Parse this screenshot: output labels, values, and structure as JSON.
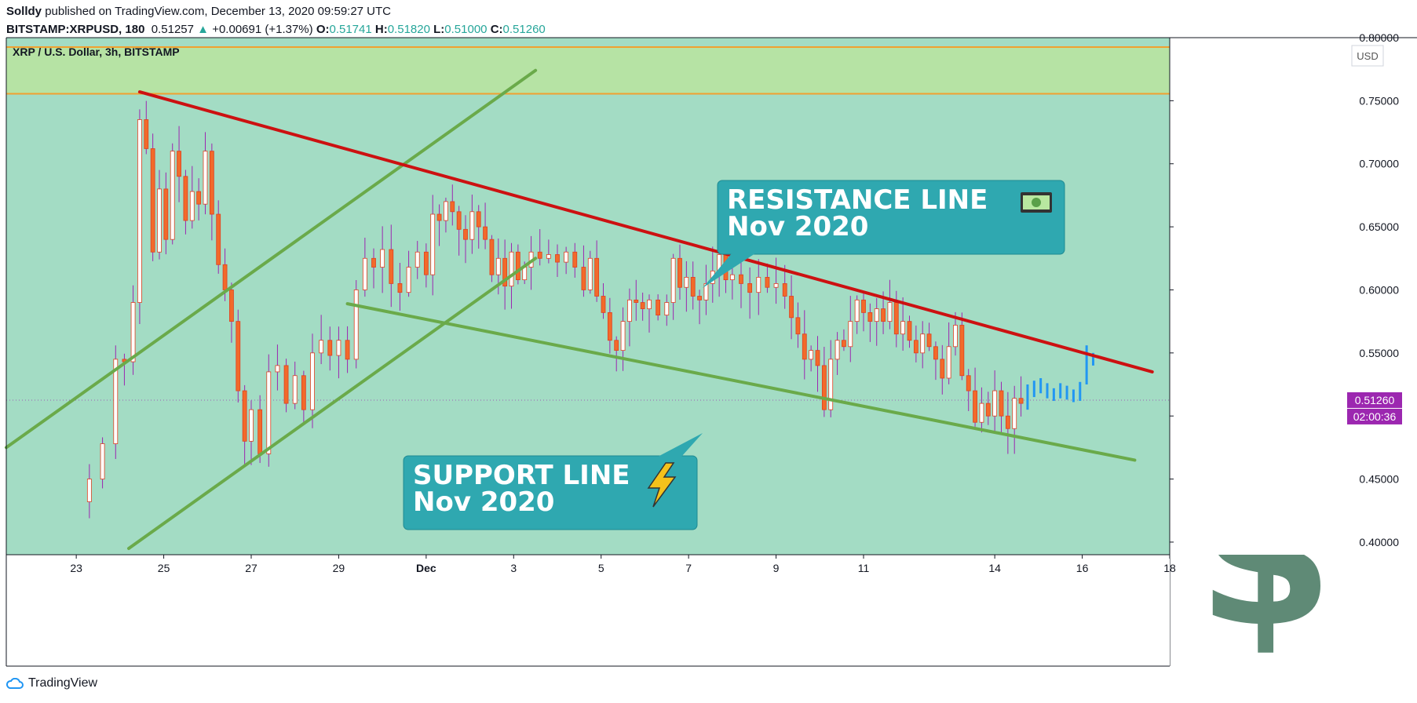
{
  "header": {
    "author": "Solldy",
    "published_text": "published on TradingView.com, December 13, 2020 09:59:27 UTC",
    "symbol": "BITSTAMP:XRPUSD, 180",
    "last": "0.51257",
    "change": "+0.00691 (+1.37%)",
    "o_label": "O:",
    "o_value": "0.51741",
    "h_label": "H:",
    "h_value": "0.51820",
    "l_label": "L:",
    "l_value": "0.51000",
    "c_label": "C:",
    "c_value": "0.51260"
  },
  "footer": {
    "brand": "TradingView"
  },
  "colors": {
    "pane_bg": "#a3dcc4",
    "zone_bg": "#b6e3a4",
    "zone_line": "#f0a030",
    "resistance": "#cc1111",
    "support": "#6aaa4a",
    "candle_up_body": "#ffffff",
    "candle_down_body": "#f26a2a",
    "wick": "#9c27b0",
    "forecast": "#2196f3",
    "callout_bg": "#2fa8b0",
    "price_tag": "#9c27b0",
    "dollar": "#5f8a76"
  },
  "chart_data": {
    "type": "candlestick",
    "title": "XRP / U.S. Dollar, 3h, BITSTAMP",
    "currency": "USD",
    "ylim": [
      0.39,
      0.8
    ],
    "y_ticks": [
      "0.80000",
      "0.75000",
      "0.70000",
      "0.65000",
      "0.60000",
      "0.55000",
      "0.50000",
      "0.45000",
      "0.40000"
    ],
    "y_tick_values": [
      0.8,
      0.75,
      0.7,
      0.65,
      0.6,
      0.55,
      0.5,
      0.45,
      0.4
    ],
    "x_ticks": [
      "23",
      "25",
      "27",
      "29",
      "Dec",
      "3",
      "5",
      "7",
      "9",
      "11",
      "14",
      "16",
      "18"
    ],
    "x_tick_days": [
      0,
      2,
      4,
      6,
      8,
      10,
      12,
      14,
      16,
      18,
      21,
      23,
      25
    ],
    "x_range_days": [
      -1.6,
      25.0
    ],
    "last_price": "0.51260",
    "countdown": "02:00:36",
    "last_price_value": 0.5126,
    "zone": [
      0.7555,
      0.7925
    ],
    "close_path": [
      [
        0.0,
        0.432
      ],
      [
        0.3,
        0.45
      ],
      [
        0.6,
        0.478
      ],
      [
        0.9,
        0.545
      ],
      [
        1.1,
        0.543
      ],
      [
        1.3,
        0.59
      ],
      [
        1.45,
        0.735
      ],
      [
        1.6,
        0.712
      ],
      [
        1.75,
        0.63
      ],
      [
        1.9,
        0.68
      ],
      [
        2.05,
        0.64
      ],
      [
        2.2,
        0.71
      ],
      [
        2.35,
        0.69
      ],
      [
        2.5,
        0.655
      ],
      [
        2.65,
        0.678
      ],
      [
        2.8,
        0.668
      ],
      [
        2.95,
        0.71
      ],
      [
        3.1,
        0.66
      ],
      [
        3.25,
        0.62
      ],
      [
        3.4,
        0.6
      ],
      [
        3.55,
        0.575
      ],
      [
        3.7,
        0.52
      ],
      [
        3.85,
        0.48
      ],
      [
        4.0,
        0.505
      ],
      [
        4.2,
        0.47
      ],
      [
        4.4,
        0.535
      ],
      [
        4.6,
        0.54
      ],
      [
        4.8,
        0.51
      ],
      [
        5.0,
        0.532
      ],
      [
        5.2,
        0.505
      ],
      [
        5.4,
        0.55
      ],
      [
        5.6,
        0.56
      ],
      [
        5.8,
        0.548
      ],
      [
        6.0,
        0.56
      ],
      [
        6.2,
        0.545
      ],
      [
        6.4,
        0.6
      ],
      [
        6.6,
        0.625
      ],
      [
        6.8,
        0.618
      ],
      [
        7.0,
        0.632
      ],
      [
        7.2,
        0.605
      ],
      [
        7.4,
        0.598
      ],
      [
        7.6,
        0.618
      ],
      [
        7.8,
        0.63
      ],
      [
        8.0,
        0.612
      ],
      [
        8.15,
        0.66
      ],
      [
        8.3,
        0.655
      ],
      [
        8.45,
        0.67
      ],
      [
        8.6,
        0.662
      ],
      [
        8.75,
        0.648
      ],
      [
        8.9,
        0.64
      ],
      [
        9.05,
        0.662
      ],
      [
        9.2,
        0.65
      ],
      [
        9.35,
        0.64
      ],
      [
        9.5,
        0.612
      ],
      [
        9.65,
        0.625
      ],
      [
        9.8,
        0.603
      ],
      [
        9.95,
        0.63
      ],
      [
        10.1,
        0.608
      ],
      [
        10.25,
        0.618
      ],
      [
        10.4,
        0.63
      ],
      [
        10.6,
        0.625
      ],
      [
        10.8,
        0.628
      ],
      [
        11.0,
        0.622
      ],
      [
        11.2,
        0.63
      ],
      [
        11.4,
        0.618
      ],
      [
        11.6,
        0.6
      ],
      [
        11.75,
        0.625
      ],
      [
        11.9,
        0.595
      ],
      [
        12.05,
        0.582
      ],
      [
        12.2,
        0.56
      ],
      [
        12.35,
        0.552
      ],
      [
        12.5,
        0.575
      ],
      [
        12.65,
        0.592
      ],
      [
        12.8,
        0.59
      ],
      [
        12.95,
        0.585
      ],
      [
        13.1,
        0.592
      ],
      [
        13.3,
        0.58
      ],
      [
        13.5,
        0.59
      ],
      [
        13.65,
        0.625
      ],
      [
        13.8,
        0.602
      ],
      [
        13.95,
        0.61
      ],
      [
        14.1,
        0.595
      ],
      [
        14.25,
        0.592
      ],
      [
        14.4,
        0.605
      ],
      [
        14.55,
        0.615
      ],
      [
        14.7,
        0.628
      ],
      [
        14.85,
        0.608
      ],
      [
        15.0,
        0.612
      ],
      [
        15.2,
        0.605
      ],
      [
        15.4,
        0.598
      ],
      [
        15.6,
        0.61
      ],
      [
        15.8,
        0.602
      ],
      [
        16.0,
        0.605
      ],
      [
        16.2,
        0.595
      ],
      [
        16.35,
        0.578
      ],
      [
        16.5,
        0.565
      ],
      [
        16.65,
        0.545
      ],
      [
        16.8,
        0.552
      ],
      [
        16.95,
        0.54
      ],
      [
        17.1,
        0.505
      ],
      [
        17.25,
        0.545
      ],
      [
        17.4,
        0.56
      ],
      [
        17.55,
        0.555
      ],
      [
        17.7,
        0.575
      ],
      [
        17.85,
        0.592
      ],
      [
        18.0,
        0.582
      ],
      [
        18.15,
        0.575
      ],
      [
        18.3,
        0.585
      ],
      [
        18.45,
        0.575
      ],
      [
        18.6,
        0.59
      ],
      [
        18.75,
        0.565
      ],
      [
        18.9,
        0.575
      ],
      [
        19.05,
        0.56
      ],
      [
        19.2,
        0.55
      ],
      [
        19.35,
        0.565
      ],
      [
        19.5,
        0.555
      ],
      [
        19.65,
        0.545
      ],
      [
        19.8,
        0.53
      ],
      [
        19.95,
        0.555
      ],
      [
        20.1,
        0.572
      ],
      [
        20.25,
        0.532
      ],
      [
        20.4,
        0.52
      ],
      [
        20.55,
        0.495
      ],
      [
        20.7,
        0.51
      ],
      [
        20.85,
        0.5
      ],
      [
        21.0,
        0.52
      ],
      [
        21.15,
        0.5
      ],
      [
        21.3,
        0.49
      ],
      [
        21.45,
        0.514
      ],
      [
        21.6,
        0.51
      ]
    ],
    "forecast_bars": [
      [
        21.75,
        0.505,
        0.525
      ],
      [
        21.9,
        0.515,
        0.528
      ],
      [
        22.05,
        0.518,
        0.53
      ],
      [
        22.2,
        0.514,
        0.526
      ],
      [
        22.35,
        0.512,
        0.522
      ],
      [
        22.5,
        0.514,
        0.526
      ],
      [
        22.65,
        0.513,
        0.524
      ],
      [
        22.8,
        0.511,
        0.521
      ],
      [
        22.95,
        0.512,
        0.527
      ],
      [
        23.1,
        0.525,
        0.556
      ],
      [
        23.25,
        0.54,
        0.55
      ]
    ],
    "trendlines": {
      "resistance": [
        [
          1.45,
          0.757
        ],
        [
          24.6,
          0.535
        ]
      ],
      "support_lower": [
        [
          6.2,
          0.589
        ],
        [
          24.2,
          0.465
        ]
      ],
      "channel_upper": [
        [
          -1.6,
          0.475
        ],
        [
          10.5,
          0.774
        ]
      ],
      "channel_lower": [
        [
          1.2,
          0.395
        ],
        [
          8.2,
          0.563
        ],
        [
          10.5,
          0.625
        ]
      ]
    },
    "annotations": [
      {
        "text_line1": "RESISTANCE LINE",
        "text_line2": "Nov 2020",
        "icon": "money-icon"
      },
      {
        "text_line1": "SUPPORT LINE",
        "text_line2": "Nov 2020",
        "icon": "lightning-icon"
      }
    ]
  }
}
